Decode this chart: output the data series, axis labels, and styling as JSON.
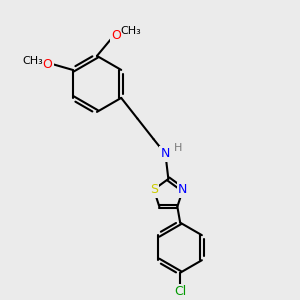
{
  "bg_color": "#ebebeb",
  "bond_color": "#000000",
  "bond_width": 1.5,
  "atom_colors": {
    "N": "#0000ff",
    "S": "#cccc00",
    "O": "#ff0000",
    "Cl": "#009900",
    "H": "#7a7a7a",
    "C": "#000000"
  },
  "font_size": 9,
  "fig_size": [
    3.0,
    3.0
  ],
  "dpi": 100
}
